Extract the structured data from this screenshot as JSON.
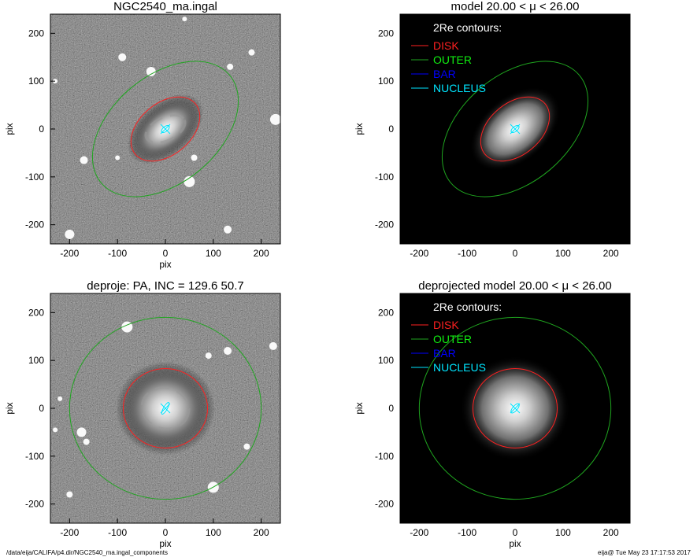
{
  "footer": {
    "left": "/data/eija/CALIFA/p4.dir/NGC2540_ma.ingal_components",
    "right": "eija@  Tue May 23 17:17:53 2017"
  },
  "colors": {
    "disk": "#ff2020",
    "outer": "#1fa51f",
    "bar": "#0000ff",
    "nucleus": "#00e5ff"
  },
  "legend": {
    "title": "2Re contours:",
    "entries": [
      {
        "label": "DISK",
        "color": "#ff2020"
      },
      {
        "label": "OUTER",
        "color": "#11ee11"
      },
      {
        "label": "BAR",
        "color": "#0000ff"
      },
      {
        "label": "NUCLEUS",
        "color": "#00e5ff"
      }
    ]
  },
  "chart_data": [
    {
      "type": "image",
      "title": "NGC2540_ma.ingal",
      "xlabel": "pix",
      "ylabel": "pix",
      "xlim": [
        -240,
        240
      ],
      "ylim": [
        -240,
        240
      ],
      "xticks": [
        -200,
        -100,
        0,
        100,
        200
      ],
      "yticks": [
        -200,
        -100,
        0,
        100,
        200
      ],
      "background": "noisy",
      "galaxy": {
        "a": 80,
        "b": 48,
        "angle": 40
      },
      "contours": [
        {
          "component": "DISK",
          "a": 82,
          "b": 54,
          "angle": 40
        },
        {
          "component": "OUTER",
          "a": 175,
          "b": 112,
          "angle": 40
        },
        {
          "component": "NUCLEUS",
          "a": 10,
          "b": 5,
          "angle": 40
        }
      ],
      "legend": false
    },
    {
      "type": "image",
      "title": "model  20.00 < μ <  26.00",
      "xlabel": "",
      "ylabel": "pix",
      "xlim": [
        -240,
        240
      ],
      "ylim": [
        -240,
        240
      ],
      "xticks": [
        -200,
        -100,
        0,
        100,
        200
      ],
      "yticks": [
        -200,
        -100,
        0,
        100,
        200
      ],
      "background": "black",
      "galaxy": {
        "a": 95,
        "b": 60,
        "angle": 40
      },
      "contours": [
        {
          "component": "DISK",
          "a": 82,
          "b": 54,
          "angle": 40
        },
        {
          "component": "OUTER",
          "a": 175,
          "b": 112,
          "angle": 40
        },
        {
          "component": "NUCLEUS",
          "a": 10,
          "b": 5,
          "angle": 40
        }
      ],
      "legend": true
    },
    {
      "type": "image",
      "title": "deproje: PA, INC = 129.6    50.7",
      "xlabel": "pix",
      "ylabel": "pix",
      "xlim": [
        -240,
        240
      ],
      "ylim": [
        -240,
        240
      ],
      "xticks": [
        -200,
        -100,
        0,
        100,
        200
      ],
      "yticks": [
        -200,
        -100,
        0,
        100,
        200
      ],
      "background": "noisy",
      "galaxy": {
        "a": 90,
        "b": 85,
        "angle": 0
      },
      "contours": [
        {
          "component": "DISK",
          "a": 88,
          "b": 83,
          "angle": 0
        },
        {
          "component": "OUTER",
          "a": 200,
          "b": 190,
          "angle": 0
        },
        {
          "component": "NUCLEUS",
          "a": 14,
          "b": 4,
          "angle": 60
        }
      ],
      "legend": false
    },
    {
      "type": "image",
      "title": "deprojected model  20.00 < μ <  26.00",
      "xlabel": "pix",
      "ylabel": "pix",
      "xlim": [
        -240,
        240
      ],
      "ylim": [
        -240,
        240
      ],
      "xticks": [
        -200,
        -100,
        0,
        100,
        200
      ],
      "yticks": [
        -200,
        -100,
        0,
        100,
        200
      ],
      "background": "black",
      "galaxy": {
        "a": 100,
        "b": 95,
        "angle": 0
      },
      "contours": [
        {
          "component": "DISK",
          "a": 88,
          "b": 83,
          "angle": 0
        },
        {
          "component": "OUTER",
          "a": 200,
          "b": 190,
          "angle": 0
        },
        {
          "component": "NUCLEUS",
          "a": 12,
          "b": 5,
          "angle": 50
        }
      ],
      "legend": true
    }
  ]
}
